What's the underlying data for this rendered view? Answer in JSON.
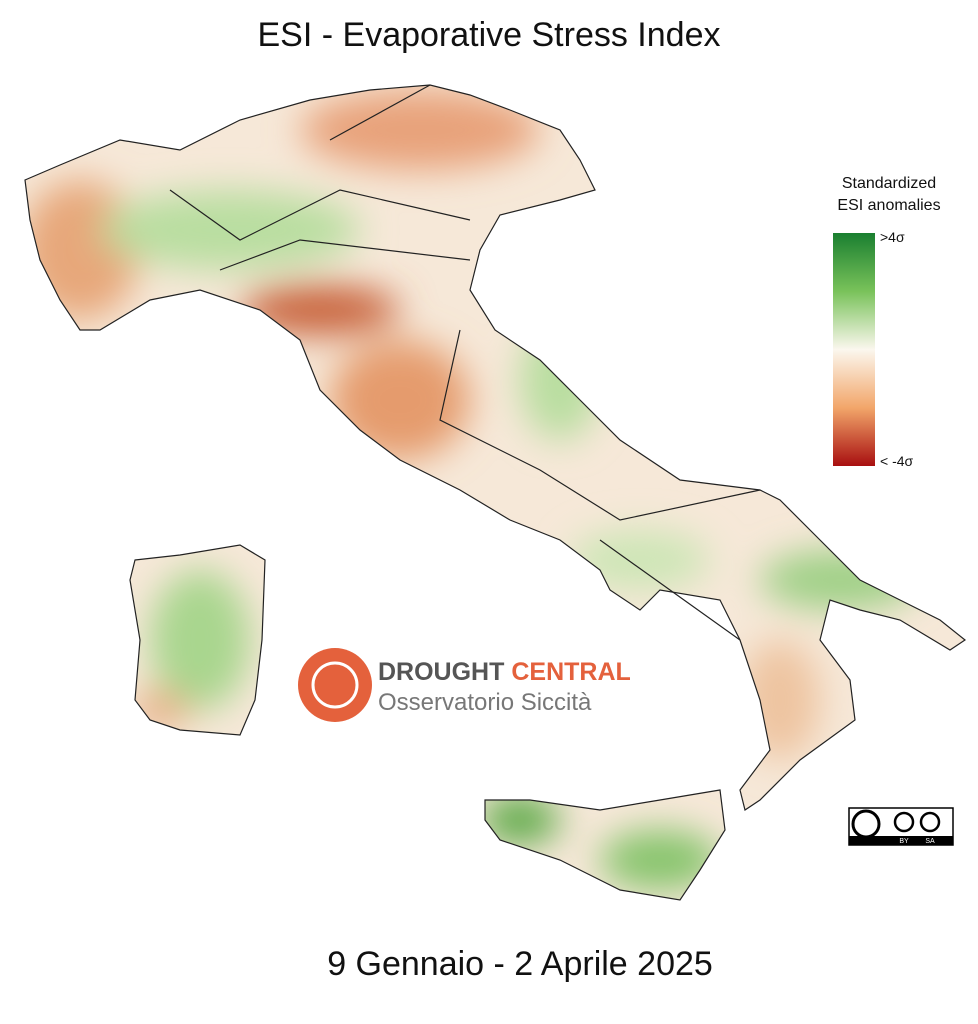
{
  "header": {
    "title": "ESI - Evaporative Stress Index"
  },
  "legend": {
    "title_lines": [
      "Standardized",
      "ESI anomalies"
    ],
    "max_label": ">4σ",
    "min_label": "< -4σ"
  },
  "logo": {
    "word1": "DROUGHT",
    "word2": "CENTRAL",
    "subtitle": "Osservatorio Siccità"
  },
  "license": {
    "by": "BY",
    "sa": "SA"
  },
  "footer": {
    "period": "9 Gennaio - 2 Aprile 2025"
  }
}
